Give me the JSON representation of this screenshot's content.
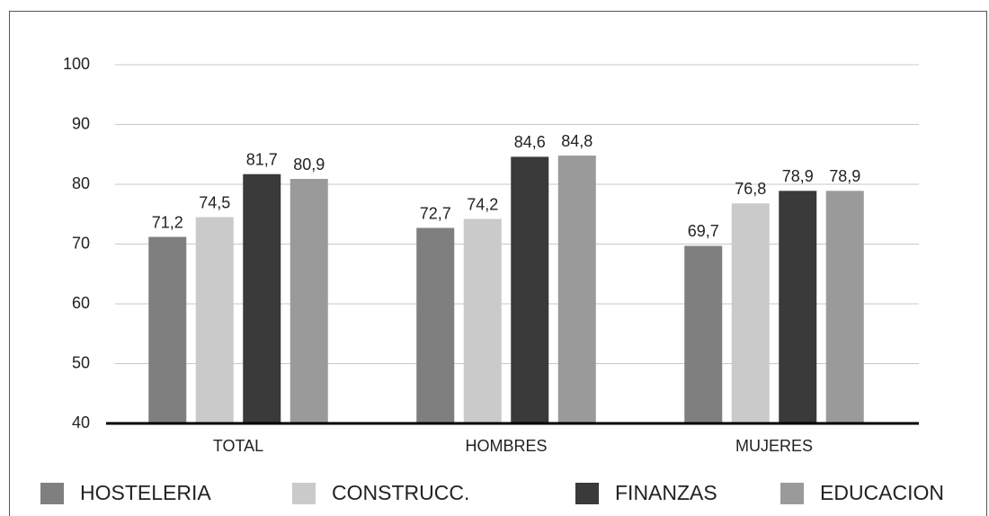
{
  "chart_data": {
    "type": "bar",
    "categories": [
      "TOTAL",
      "HOMBRES",
      "MUJERES"
    ],
    "series": [
      {
        "name": "HOSTELERIA",
        "color": "#7f7f7f",
        "values": [
          71.2,
          72.7,
          69.7
        ],
        "value_labels": [
          "71,2",
          "72,7",
          "69,7"
        ]
      },
      {
        "name": "CONSTRUCC.",
        "color": "#cacaca",
        "values": [
          74.5,
          74.2,
          76.8
        ],
        "value_labels": [
          "74,5",
          "74,2",
          "76,8"
        ]
      },
      {
        "name": "FINANZAS",
        "color": "#3a3a3a",
        "values": [
          81.7,
          84.6,
          78.9
        ],
        "value_labels": [
          "81,7",
          "84,6",
          "78,9"
        ]
      },
      {
        "name": "EDUCACION",
        "color": "#9a9a9a",
        "values": [
          80.9,
          84.8,
          78.9
        ],
        "value_labels": [
          "80,9",
          "84,8",
          "78,9"
        ]
      }
    ],
    "ylim": [
      40,
      100
    ],
    "yticks": [
      40,
      50,
      60,
      70,
      80,
      90,
      100
    ],
    "grid": true,
    "legend": "bottom"
  }
}
